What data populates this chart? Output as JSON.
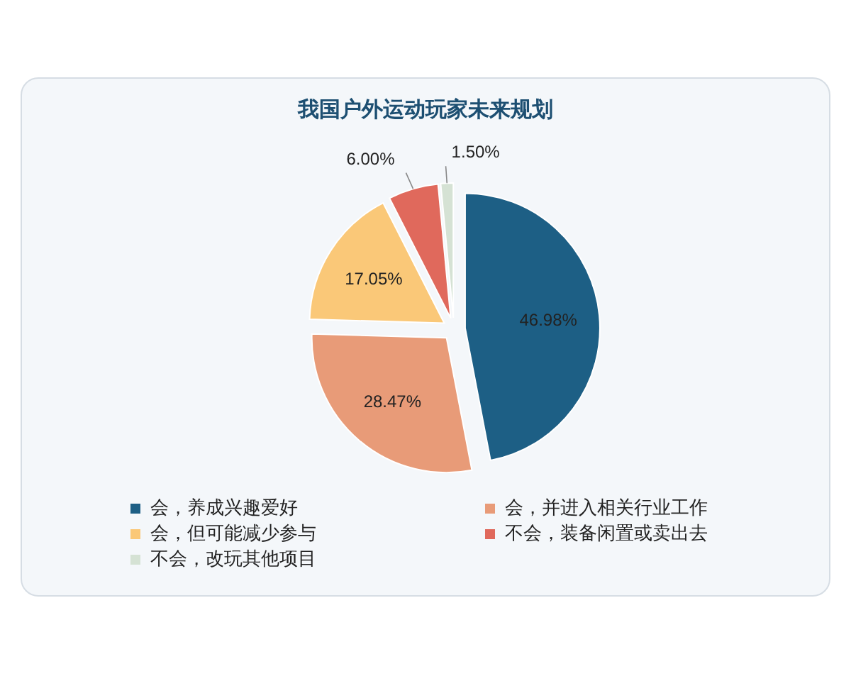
{
  "chart_data": {
    "type": "pie",
    "title": "我国户外运动玩家未来规划",
    "categories": [
      "会，养成兴趣爱好",
      "会，并进入相关行业工作",
      "会，但可能减少参与",
      "不会，装备闲置或卖出去",
      "不会，改玩其他项目"
    ],
    "values": [
      46.98,
      28.47,
      17.05,
      6.0,
      1.5
    ],
    "colors": [
      "#1d5f85",
      "#e89b78",
      "#fac878",
      "#e0695c",
      "#d5e2d4"
    ],
    "value_labels": [
      "46.98%",
      "28.47%",
      "17.05%",
      "6.00%",
      "1.50%"
    ],
    "legend": "bottom"
  }
}
